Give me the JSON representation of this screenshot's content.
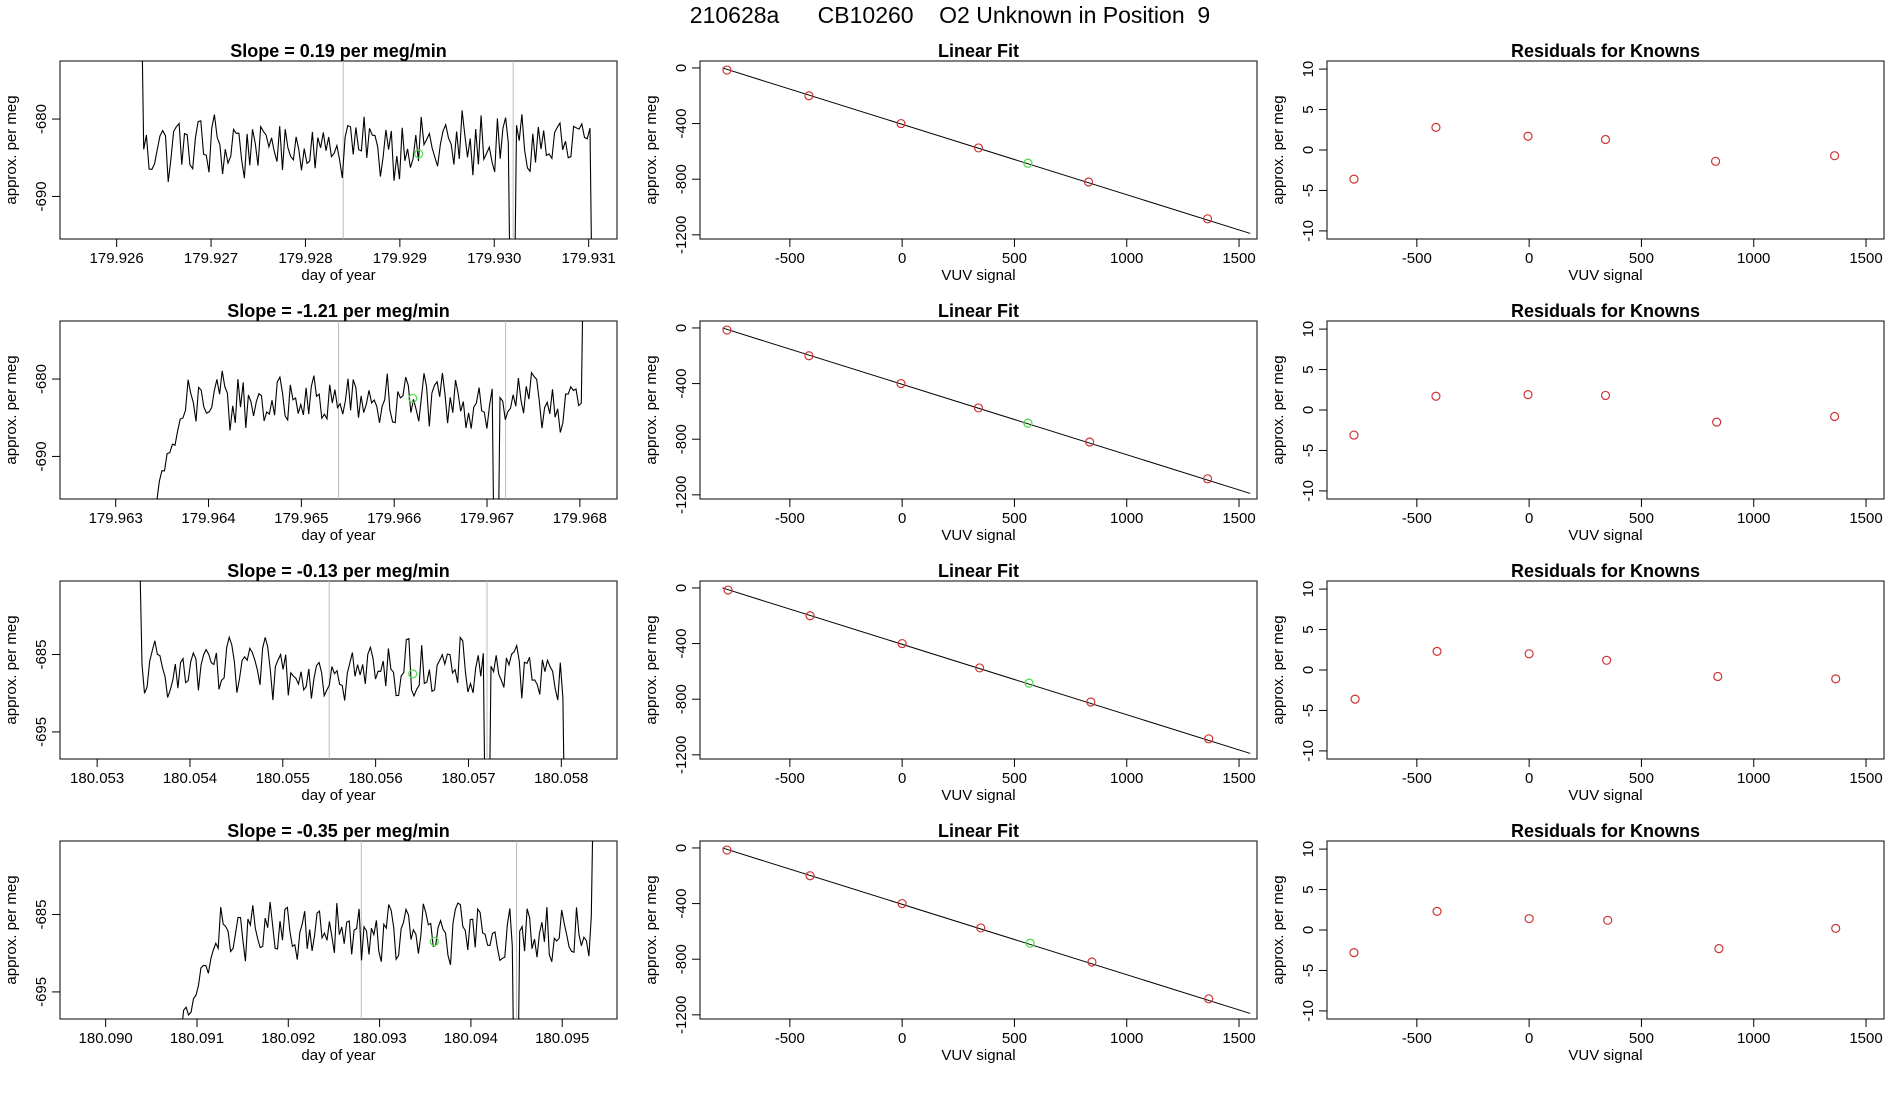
{
  "title": "210628a      CB10260    O2 Unknown in Position  9",
  "colors": {
    "trace": "#000000",
    "frame": "#000000",
    "marker": "#cd3333",
    "unknown": "#55dd55",
    "vline": "#bbbbbb"
  },
  "chart_data": [
    {
      "type": "line",
      "panel": "time-1",
      "title": "Slope =  0.19  per meg/min",
      "xlabel": "day of year",
      "ylabel": "approx. per meg",
      "xlim": [
        179.9254,
        179.9313
      ],
      "ylim": [
        -695.5,
        -672.5
      ],
      "xticks": [
        179.926,
        179.927,
        179.928,
        179.929,
        179.93,
        179.931
      ],
      "xtick_labels": [
        "179.926",
        "179.927",
        "179.928",
        "179.929",
        "179.930",
        "179.931"
      ],
      "yticks": [
        -680,
        -690
      ],
      "ytick_labels": [
        "-680",
        "-690"
      ],
      "vlines": [
        179.9284,
        179.9302
      ],
      "trace": {
        "x_start": 179.9262,
        "x_end": 179.9311,
        "level": -683.5,
        "amp": 3.5,
        "start_value": -660,
        "end_value": -710,
        "dips": [
          {
            "x": 179.9302,
            "value": -712
          }
        ]
      },
      "unknown_point": {
        "x": 179.9292,
        "y": -684.5
      }
    },
    {
      "type": "line",
      "panel": "time-2",
      "title": "Slope =  -1.21  per meg/min",
      "xlabel": "day of year",
      "ylabel": "approx. per meg",
      "xlim": [
        179.9624,
        179.9684
      ],
      "ylim": [
        -695.5,
        -672.5
      ],
      "xticks": [
        179.963,
        179.964,
        179.965,
        179.966,
        179.967,
        179.968
      ],
      "xtick_labels": [
        "179.963",
        "179.964",
        "179.965",
        "179.966",
        "179.967",
        "179.968"
      ],
      "yticks": [
        -680,
        -690
      ],
      "ytick_labels": [
        "-680",
        "-690"
      ],
      "vlines": [
        179.9654,
        179.9672
      ],
      "trace": {
        "x_start": 179.9633,
        "x_end": 179.9681,
        "level": -683.0,
        "amp": 3.0,
        "start_value": -700,
        "end_value": -660,
        "rise": true,
        "dips": [
          {
            "x": 179.9671,
            "value": -712
          }
        ]
      },
      "unknown_point": {
        "x": 179.9662,
        "y": -682.5
      }
    },
    {
      "type": "line",
      "panel": "time-3",
      "title": "Slope =  -0.13  per meg/min",
      "xlabel": "day of year",
      "ylabel": "approx. per meg",
      "xlim": [
        180.0526,
        180.0586
      ],
      "ylim": [
        -698.5,
        -675.5
      ],
      "xticks": [
        180.053,
        180.054,
        180.055,
        180.056,
        180.057,
        180.058
      ],
      "xtick_labels": [
        "180.053",
        "180.054",
        "180.055",
        "180.056",
        "180.057",
        "180.058"
      ],
      "yticks": [
        -685,
        -695
      ],
      "ytick_labels": [
        "-685",
        "-695"
      ],
      "vlines": [
        180.0555,
        180.0572
      ],
      "trace": {
        "x_start": 180.0534,
        "x_end": 180.0581,
        "level": -687.0,
        "amp": 3.0,
        "start_value": -670,
        "end_value": -715,
        "dips": [
          {
            "x": 180.0572,
            "value": -715
          }
        ]
      },
      "unknown_point": {
        "x": 180.0564,
        "y": -687.5
      }
    },
    {
      "type": "line",
      "panel": "time-4",
      "title": "Slope =  -0.35  per meg/min",
      "xlabel": "day of year",
      "ylabel": "approx. per meg",
      "xlim": [
        180.0895,
        180.0956
      ],
      "ylim": [
        -698.5,
        -675.5
      ],
      "xticks": [
        180.09,
        180.091,
        180.092,
        180.093,
        180.094,
        180.095
      ],
      "xtick_labels": [
        "180.090",
        "180.091",
        "180.092",
        "180.093",
        "180.094",
        "180.095"
      ],
      "yticks": [
        -685,
        -695
      ],
      "ytick_labels": [
        "-685",
        "-695"
      ],
      "vlines": [
        180.0928,
        180.0945
      ],
      "trace": {
        "x_start": 180.0908,
        "x_end": 180.0954,
        "level": -687.5,
        "amp": 3.0,
        "start_value": -700,
        "end_value": -665,
        "rise": true,
        "dips": [
          {
            "x": 180.0945,
            "value": -715
          }
        ]
      },
      "unknown_point": {
        "x": 180.0936,
        "y": -688.5
      }
    },
    {
      "type": "scatter",
      "panel": "fit-1",
      "title": "Linear Fit",
      "xlabel": "VUV signal",
      "ylabel": "approx. per meg",
      "xlim": [
        -900,
        1580
      ],
      "ylim": [
        -1230,
        50
      ],
      "xticks": [
        -500,
        0,
        500,
        1000,
        1500
      ],
      "xtick_labels": [
        "-500",
        "0",
        "500",
        "1000",
        "1500"
      ],
      "yticks": [
        0,
        -400,
        -800,
        -1200
      ],
      "ytick_labels": [
        "0",
        "-400",
        "-800",
        "-1200"
      ],
      "fit_line": {
        "x": [
          -800,
          1550
        ],
        "y": [
          0,
          -1190
        ]
      },
      "points": [
        {
          "x": -780,
          "y": -15
        },
        {
          "x": -415,
          "y": -200
        },
        {
          "x": -5,
          "y": -400
        },
        {
          "x": 340,
          "y": -575
        },
        {
          "x": 830,
          "y": -820
        },
        {
          "x": 1360,
          "y": -1085
        }
      ],
      "unknown_point": {
        "x": 560,
        "y": -685
      }
    },
    {
      "type": "scatter",
      "panel": "fit-2",
      "title": "Linear Fit",
      "xlabel": "VUV signal",
      "ylabel": "approx. per meg",
      "xlim": [
        -900,
        1580
      ],
      "ylim": [
        -1230,
        50
      ],
      "xticks": [
        -500,
        0,
        500,
        1000,
        1500
      ],
      "xtick_labels": [
        "-500",
        "0",
        "500",
        "1000",
        "1500"
      ],
      "yticks": [
        0,
        -400,
        -800,
        -1200
      ],
      "ytick_labels": [
        "0",
        "-400",
        "-800",
        "-1200"
      ],
      "fit_line": {
        "x": [
          -800,
          1550
        ],
        "y": [
          0,
          -1190
        ]
      },
      "points": [
        {
          "x": -780,
          "y": -15
        },
        {
          "x": -415,
          "y": -200
        },
        {
          "x": -5,
          "y": -400
        },
        {
          "x": 340,
          "y": -575
        },
        {
          "x": 835,
          "y": -820
        },
        {
          "x": 1360,
          "y": -1085
        }
      ],
      "unknown_point": {
        "x": 560,
        "y": -685
      }
    },
    {
      "type": "scatter",
      "panel": "fit-3",
      "title": "Linear Fit",
      "xlabel": "VUV signal",
      "ylabel": "approx. per meg",
      "xlim": [
        -900,
        1580
      ],
      "ylim": [
        -1230,
        50
      ],
      "xticks": [
        -500,
        0,
        500,
        1000,
        1500
      ],
      "xtick_labels": [
        "-500",
        "0",
        "500",
        "1000",
        "1500"
      ],
      "yticks": [
        0,
        -400,
        -800,
        -1200
      ],
      "ytick_labels": [
        "0",
        "-400",
        "-800",
        "-1200"
      ],
      "fit_line": {
        "x": [
          -800,
          1550
        ],
        "y": [
          0,
          -1190
        ]
      },
      "points": [
        {
          "x": -775,
          "y": -15
        },
        {
          "x": -410,
          "y": -200
        },
        {
          "x": 0,
          "y": -400
        },
        {
          "x": 345,
          "y": -575
        },
        {
          "x": 840,
          "y": -820
        },
        {
          "x": 1365,
          "y": -1085
        }
      ],
      "unknown_point": {
        "x": 565,
        "y": -685
      }
    },
    {
      "type": "scatter",
      "panel": "fit-4",
      "title": "Linear Fit",
      "xlabel": "VUV signal",
      "ylabel": "approx. per meg",
      "xlim": [
        -900,
        1580
      ],
      "ylim": [
        -1230,
        50
      ],
      "xticks": [
        -500,
        0,
        500,
        1000,
        1500
      ],
      "xtick_labels": [
        "-500",
        "0",
        "500",
        "1000",
        "1500"
      ],
      "yticks": [
        0,
        -400,
        -800,
        -1200
      ],
      "ytick_labels": [
        "0",
        "-400",
        "-800",
        "-1200"
      ],
      "fit_line": {
        "x": [
          -800,
          1550
        ],
        "y": [
          0,
          -1190
        ]
      },
      "points": [
        {
          "x": -780,
          "y": -15
        },
        {
          "x": -410,
          "y": -200
        },
        {
          "x": 0,
          "y": -400
        },
        {
          "x": 350,
          "y": -575
        },
        {
          "x": 845,
          "y": -820
        },
        {
          "x": 1365,
          "y": -1085
        }
      ],
      "unknown_point": {
        "x": 570,
        "y": -685
      }
    },
    {
      "type": "scatter",
      "panel": "resid-1",
      "title": "Residuals for Knowns",
      "xlabel": "VUV signal",
      "ylabel": "approx. per meg",
      "xlim": [
        -900,
        1580
      ],
      "ylim": [
        -11,
        11
      ],
      "xticks": [
        -500,
        0,
        500,
        1000,
        1500
      ],
      "xtick_labels": [
        "-500",
        "0",
        "500",
        "1000",
        "1500"
      ],
      "yticks": [
        10,
        5,
        0,
        -5,
        -10
      ],
      "ytick_labels": [
        "10",
        "5",
        "0",
        "-5",
        "-10"
      ],
      "points": [
        {
          "x": -780,
          "y": -3.6
        },
        {
          "x": -415,
          "y": 2.8
        },
        {
          "x": -5,
          "y": 1.7
        },
        {
          "x": 340,
          "y": 1.3
        },
        {
          "x": 830,
          "y": -1.4
        },
        {
          "x": 1360,
          "y": -0.7
        }
      ]
    },
    {
      "type": "scatter",
      "panel": "resid-2",
      "title": "Residuals for Knowns",
      "xlabel": "VUV signal",
      "ylabel": "approx. per meg",
      "xlim": [
        -900,
        1580
      ],
      "ylim": [
        -11,
        11
      ],
      "xticks": [
        -500,
        0,
        500,
        1000,
        1500
      ],
      "xtick_labels": [
        "-500",
        "0",
        "500",
        "1000",
        "1500"
      ],
      "yticks": [
        10,
        5,
        0,
        -5,
        -10
      ],
      "ytick_labels": [
        "10",
        "5",
        "0",
        "-5",
        "-10"
      ],
      "points": [
        {
          "x": -780,
          "y": -3.1
        },
        {
          "x": -415,
          "y": 1.7
        },
        {
          "x": -5,
          "y": 1.9
        },
        {
          "x": 340,
          "y": 1.8
        },
        {
          "x": 835,
          "y": -1.5
        },
        {
          "x": 1360,
          "y": -0.8
        }
      ]
    },
    {
      "type": "scatter",
      "panel": "resid-3",
      "title": "Residuals for Knowns",
      "xlabel": "VUV signal",
      "ylabel": "approx. per meg",
      "xlim": [
        -900,
        1580
      ],
      "ylim": [
        -11,
        11
      ],
      "xticks": [
        -500,
        0,
        500,
        1000,
        1500
      ],
      "xtick_labels": [
        "-500",
        "0",
        "500",
        "1000",
        "1500"
      ],
      "yticks": [
        10,
        5,
        0,
        -5,
        -10
      ],
      "ytick_labels": [
        "10",
        "5",
        "0",
        "-5",
        "-10"
      ],
      "points": [
        {
          "x": -775,
          "y": -3.6
        },
        {
          "x": -410,
          "y": 2.3
        },
        {
          "x": 0,
          "y": 2.0
        },
        {
          "x": 345,
          "y": 1.2
        },
        {
          "x": 840,
          "y": -0.8
        },
        {
          "x": 1365,
          "y": -1.1
        }
      ]
    },
    {
      "type": "scatter",
      "panel": "resid-4",
      "title": "Residuals for Knowns",
      "xlabel": "VUV signal",
      "ylabel": "approx. per meg",
      "xlim": [
        -900,
        1580
      ],
      "ylim": [
        -11,
        11
      ],
      "xticks": [
        -500,
        0,
        500,
        1000,
        1500
      ],
      "xtick_labels": [
        "-500",
        "0",
        "500",
        "1000",
        "1500"
      ],
      "yticks": [
        10,
        5,
        0,
        -5,
        -10
      ],
      "ytick_labels": [
        "10",
        "5",
        "0",
        "-5",
        "-10"
      ],
      "points": [
        {
          "x": -780,
          "y": -2.8
        },
        {
          "x": -410,
          "y": 2.3
        },
        {
          "x": 0,
          "y": 1.4
        },
        {
          "x": 350,
          "y": 1.2
        },
        {
          "x": 845,
          "y": -2.3
        },
        {
          "x": 1365,
          "y": 0.2
        }
      ]
    }
  ]
}
